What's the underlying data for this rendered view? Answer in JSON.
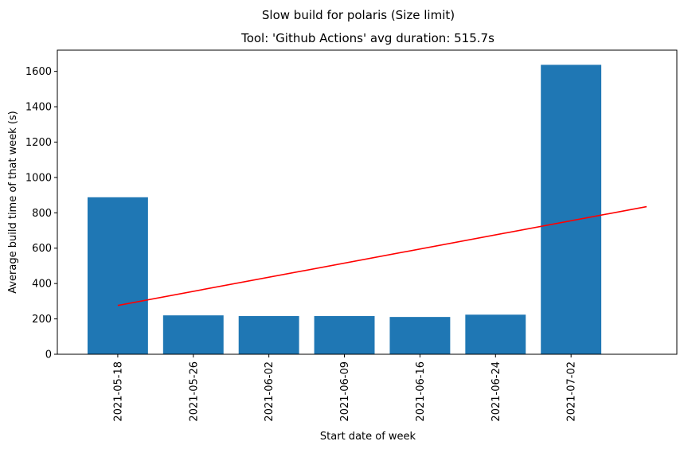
{
  "chart_data": {
    "type": "bar",
    "suptitle": "Slow build for polaris (Size limit)",
    "title": "Tool: 'Github Actions' avg duration: 515.7s",
    "xlabel": "Start date of week",
    "ylabel": "Average build time of that week (s)",
    "categories": [
      "2021-05-18",
      "2021-05-26",
      "2021-06-02",
      "2021-06-09",
      "2021-06-16",
      "2021-06-24",
      "2021-07-02"
    ],
    "values": [
      888,
      220,
      216,
      216,
      211,
      224,
      1637
    ],
    "bar_color": "#1f77b4",
    "trend_line": {
      "color": "#ff0000",
      "x": [
        0,
        7
      ],
      "y": [
        276,
        835
      ]
    },
    "ylim": [
      0,
      1720
    ],
    "yticks": [
      0,
      200,
      400,
      600,
      800,
      1000,
      1200,
      1400,
      1600
    ],
    "xlim": [
      -0.8,
      7.4
    ],
    "grid": false,
    "legend": "none"
  }
}
